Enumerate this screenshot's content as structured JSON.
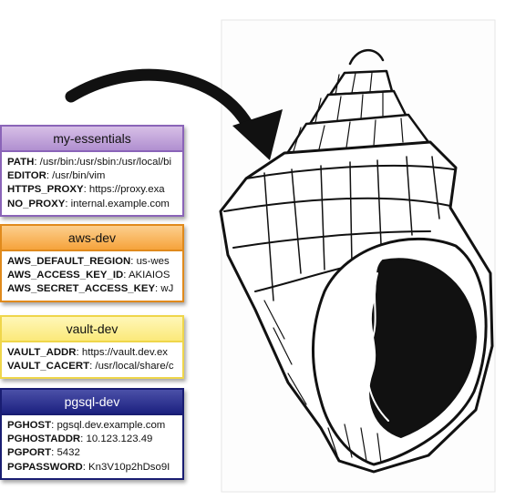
{
  "cards": [
    {
      "title": "my-essentials",
      "vars": [
        {
          "key": "PATH",
          "value": "/usr/bin:/usr/sbin:/usr/local/bi"
        },
        {
          "key": "EDITOR",
          "value": "/usr/bin/vim"
        },
        {
          "key": "HTTPS_PROXY",
          "value": "https://proxy.exa"
        },
        {
          "key": "NO_PROXY",
          "value": "internal.example.com"
        }
      ]
    },
    {
      "title": "aws-dev",
      "vars": [
        {
          "key": "AWS_DEFAULT_REGION",
          "value": "us-wes"
        },
        {
          "key": "AWS_ACCESS_KEY_ID",
          "value": "AKIAIOS"
        },
        {
          "key": "AWS_SECRET_ACCESS_KEY",
          "value": "wJ"
        }
      ]
    },
    {
      "title": "vault-dev",
      "vars": [
        {
          "key": "VAULT_ADDR",
          "value": "https://vault.dev.ex"
        },
        {
          "key": "VAULT_CACERT",
          "value": "/usr/local/share/c"
        }
      ]
    },
    {
      "title": "pgsql-dev",
      "vars": [
        {
          "key": "PGHOST",
          "value": "pgsql.dev.example.com"
        },
        {
          "key": "PGHOSTADDR",
          "value": "10.123.123.49"
        },
        {
          "key": "PGPORT",
          "value": "5432"
        },
        {
          "key": "PGPASSWORD",
          "value": "Kn3V10p2hDso9I"
        }
      ]
    }
  ],
  "colors": {
    "my-essentials": "#b08fd0",
    "aws-dev": "#f6a33b",
    "vault-dev": "#fbe97a",
    "pgsql-dev": "#1c2180"
  },
  "icons": [
    "curved-arrow-icon",
    "conch-shell-illustration"
  ]
}
